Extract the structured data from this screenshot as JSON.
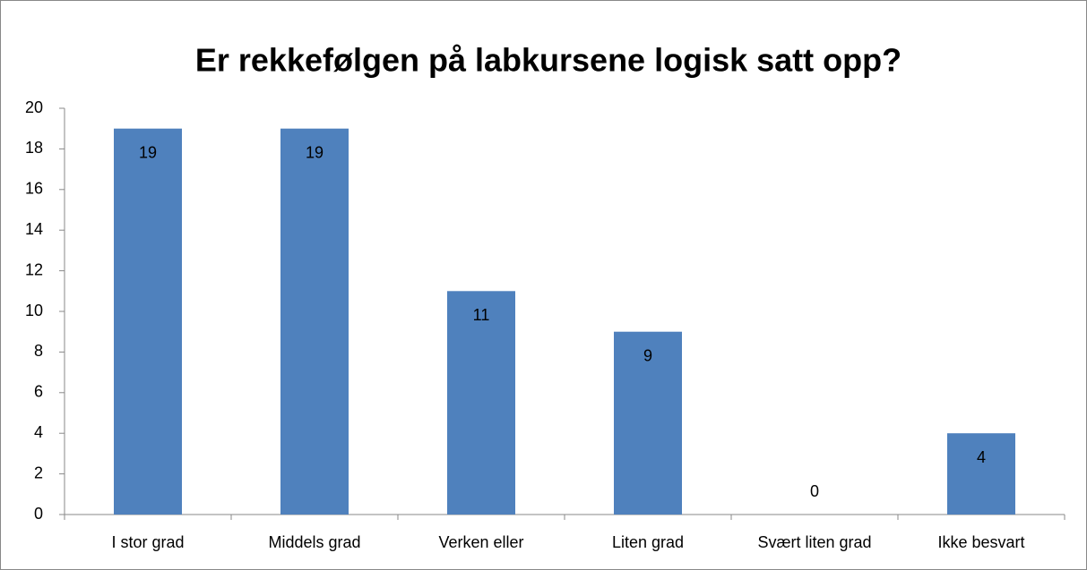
{
  "chart_data": {
    "type": "bar",
    "title": "Er rekkefølgen på labkursene logisk satt opp?",
    "categories": [
      "I stor grad",
      "Middels grad",
      "Verken eller",
      "Liten grad",
      "Svært liten grad",
      "Ikke besvart"
    ],
    "values": [
      19,
      19,
      11,
      9,
      0,
      4
    ],
    "color": "#4f81bd",
    "ylim": [
      0,
      20
    ],
    "yticks": [
      0,
      2,
      4,
      6,
      8,
      10,
      12,
      14,
      16,
      18,
      20
    ],
    "grid": false
  }
}
